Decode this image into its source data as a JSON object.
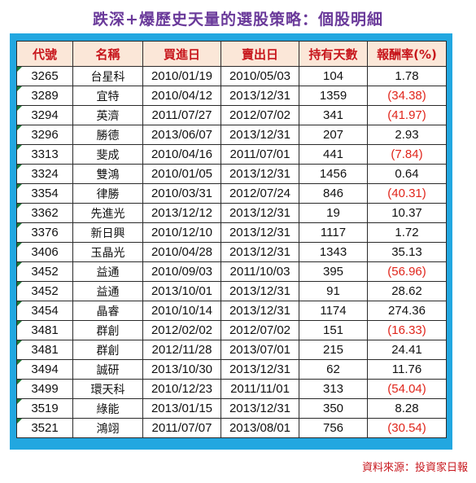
{
  "title": "跌深+爆歷史天量的選股策略：個股明細",
  "headers": [
    "代號",
    "名稱",
    "買進日",
    "賣出日",
    "持有天數",
    "報酬率(%)"
  ],
  "rows": [
    {
      "code": "3265",
      "name": "台星科",
      "buy": "2010/01/19",
      "sell": "2010/05/03",
      "days": "104",
      "ret": "1.78",
      "neg": false
    },
    {
      "code": "3289",
      "name": "宜特",
      "buy": "2010/04/12",
      "sell": "2013/12/31",
      "days": "1359",
      "ret": "(34.38)",
      "neg": true
    },
    {
      "code": "3294",
      "name": "英濟",
      "buy": "2011/07/27",
      "sell": "2012/07/02",
      "days": "341",
      "ret": "(41.97)",
      "neg": true
    },
    {
      "code": "3296",
      "name": "勝德",
      "buy": "2013/06/07",
      "sell": "2013/12/31",
      "days": "207",
      "ret": "2.93",
      "neg": false
    },
    {
      "code": "3313",
      "name": "斐成",
      "buy": "2010/04/16",
      "sell": "2011/07/01",
      "days": "441",
      "ret": "(7.84)",
      "neg": true
    },
    {
      "code": "3324",
      "name": "雙鴻",
      "buy": "2010/01/05",
      "sell": "2013/12/31",
      "days": "1456",
      "ret": "0.64",
      "neg": false
    },
    {
      "code": "3354",
      "name": "律勝",
      "buy": "2010/03/31",
      "sell": "2012/07/24",
      "days": "846",
      "ret": "(40.31)",
      "neg": true
    },
    {
      "code": "3362",
      "name": "先進光",
      "buy": "2013/12/12",
      "sell": "2013/12/31",
      "days": "19",
      "ret": "10.37",
      "neg": false
    },
    {
      "code": "3376",
      "name": "新日興",
      "buy": "2010/12/10",
      "sell": "2013/12/31",
      "days": "1117",
      "ret": "1.72",
      "neg": false
    },
    {
      "code": "3406",
      "name": "玉晶光",
      "buy": "2010/04/28",
      "sell": "2013/12/31",
      "days": "1343",
      "ret": "35.13",
      "neg": false
    },
    {
      "code": "3452",
      "name": "益通",
      "buy": "2010/09/03",
      "sell": "2011/10/03",
      "days": "395",
      "ret": "(56.96)",
      "neg": true
    },
    {
      "code": "3452",
      "name": "益通",
      "buy": "2013/10/01",
      "sell": "2013/12/31",
      "days": "91",
      "ret": "28.62",
      "neg": false
    },
    {
      "code": "3454",
      "name": "晶睿",
      "buy": "2010/10/14",
      "sell": "2013/12/31",
      "days": "1174",
      "ret": "274.36",
      "neg": false
    },
    {
      "code": "3481",
      "name": "群創",
      "buy": "2012/02/02",
      "sell": "2012/07/02",
      "days": "151",
      "ret": "(16.33)",
      "neg": true
    },
    {
      "code": "3481",
      "name": "群創",
      "buy": "2012/11/28",
      "sell": "2013/07/01",
      "days": "215",
      "ret": "24.41",
      "neg": false
    },
    {
      "code": "3494",
      "name": "誠研",
      "buy": "2013/10/30",
      "sell": "2013/12/31",
      "days": "62",
      "ret": "11.76",
      "neg": false
    },
    {
      "code": "3499",
      "name": "環天科",
      "buy": "2010/12/23",
      "sell": "2011/11/01",
      "days": "313",
      "ret": "(54.04)",
      "neg": true
    },
    {
      "code": "3519",
      "name": "綠能",
      "buy": "2013/01/15",
      "sell": "2013/12/31",
      "days": "350",
      "ret": "8.28",
      "neg": false
    },
    {
      "code": "3521",
      "name": "鴻翊",
      "buy": "2011/07/07",
      "sell": "2013/08/01",
      "days": "756",
      "ret": "(30.54)",
      "neg": true
    }
  ],
  "source": "資料來源：投資家日報",
  "colors": {
    "title": "#6a3a9a",
    "header_text": "#c7161c",
    "header_bg": "#fbe7d8",
    "frame": "#22a7e0",
    "negative": "#e0251b"
  }
}
